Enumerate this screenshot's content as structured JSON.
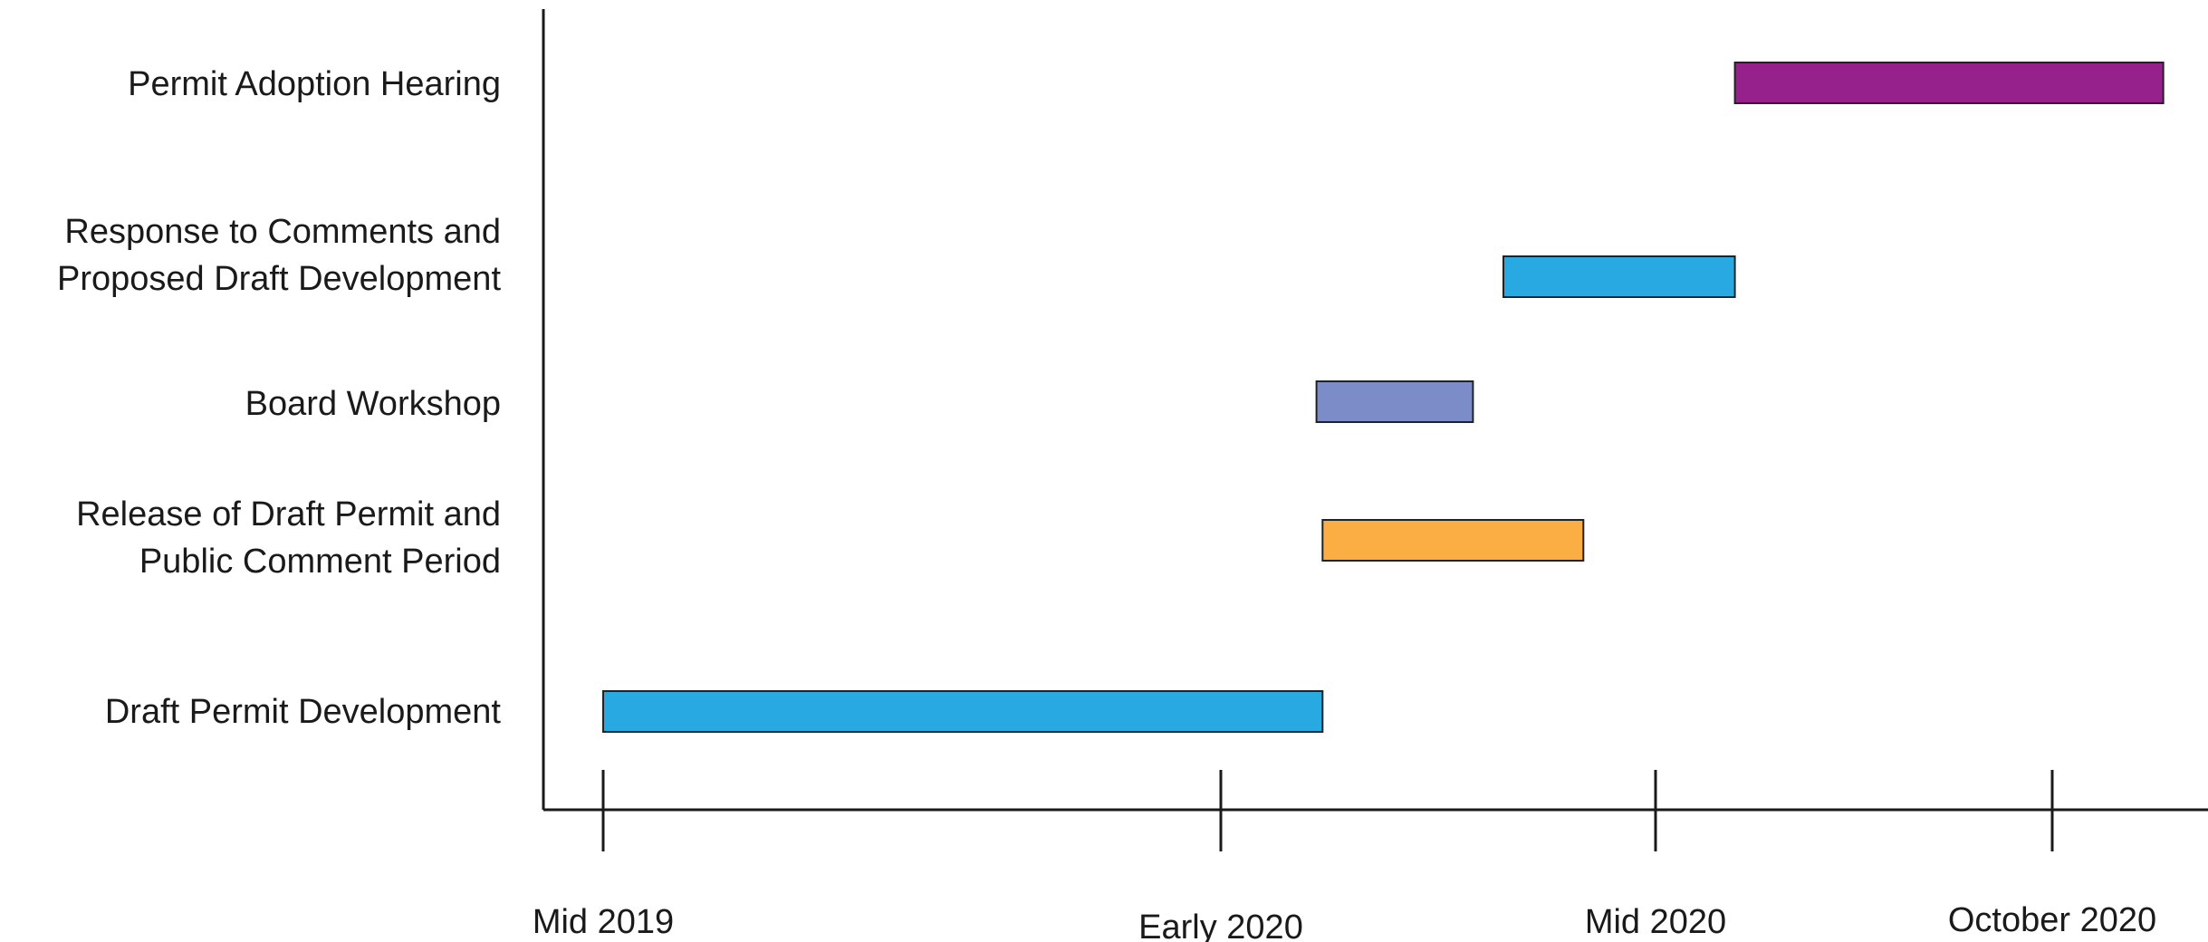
{
  "chart_data": {
    "type": "bar",
    "orientation": "horizontal-timeline",
    "title": "",
    "xlabel": "",
    "ylabel": "",
    "x_axis": {
      "min": 0,
      "max": 1.28,
      "ticks": [
        {
          "label": "Mid 2019",
          "value": 0
        },
        {
          "label": "Early 2020",
          "value": 0.5
        },
        {
          "label": "Mid 2020",
          "value": 1.0
        },
        {
          "label": "October 2020",
          "value": 1.25
        }
      ]
    },
    "grid": false,
    "legend": "none",
    "tasks": [
      {
        "label_lines": [
          "Permit Adoption Hearing"
        ],
        "start": 1.05,
        "end": 1.32,
        "color": "#96218c"
      },
      {
        "label_lines": [
          "Response to Comments and",
          "Proposed Draft Development"
        ],
        "start": 0.825,
        "end": 1.05,
        "color": "#29a9e1"
      },
      {
        "label_lines": [
          "Board Workshop"
        ],
        "start": 0.61,
        "end": 0.79,
        "color": "#7b8cc8"
      },
      {
        "label_lines": [
          "Release of Draft Permit and",
          "Public Comment Period"
        ],
        "start": 0.617,
        "end": 0.917,
        "color": "#fbae44"
      },
      {
        "label_lines": [
          "Draft Permit Development"
        ],
        "start": 0,
        "end": 0.617,
        "color": "#29a9e1"
      }
    ]
  }
}
